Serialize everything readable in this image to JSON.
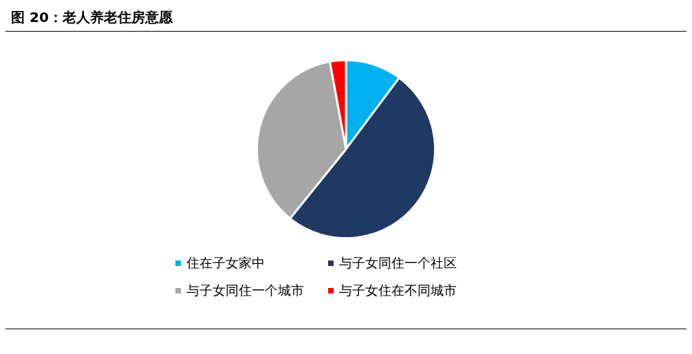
{
  "chart_data": {
    "type": "pie",
    "title": "图 20：老人养老住房意愿",
    "categories": [
      "住在子女家中",
      "与子女同住一个社区",
      "与子女同住一个城市",
      "与子女住在不同城市"
    ],
    "values": [
      10.2,
      50.6,
      36.3,
      2.9
    ],
    "colors": [
      "#00b0f0",
      "#1f3864",
      "#a6a6a6",
      "#ff0000"
    ],
    "legend": "bottom"
  }
}
